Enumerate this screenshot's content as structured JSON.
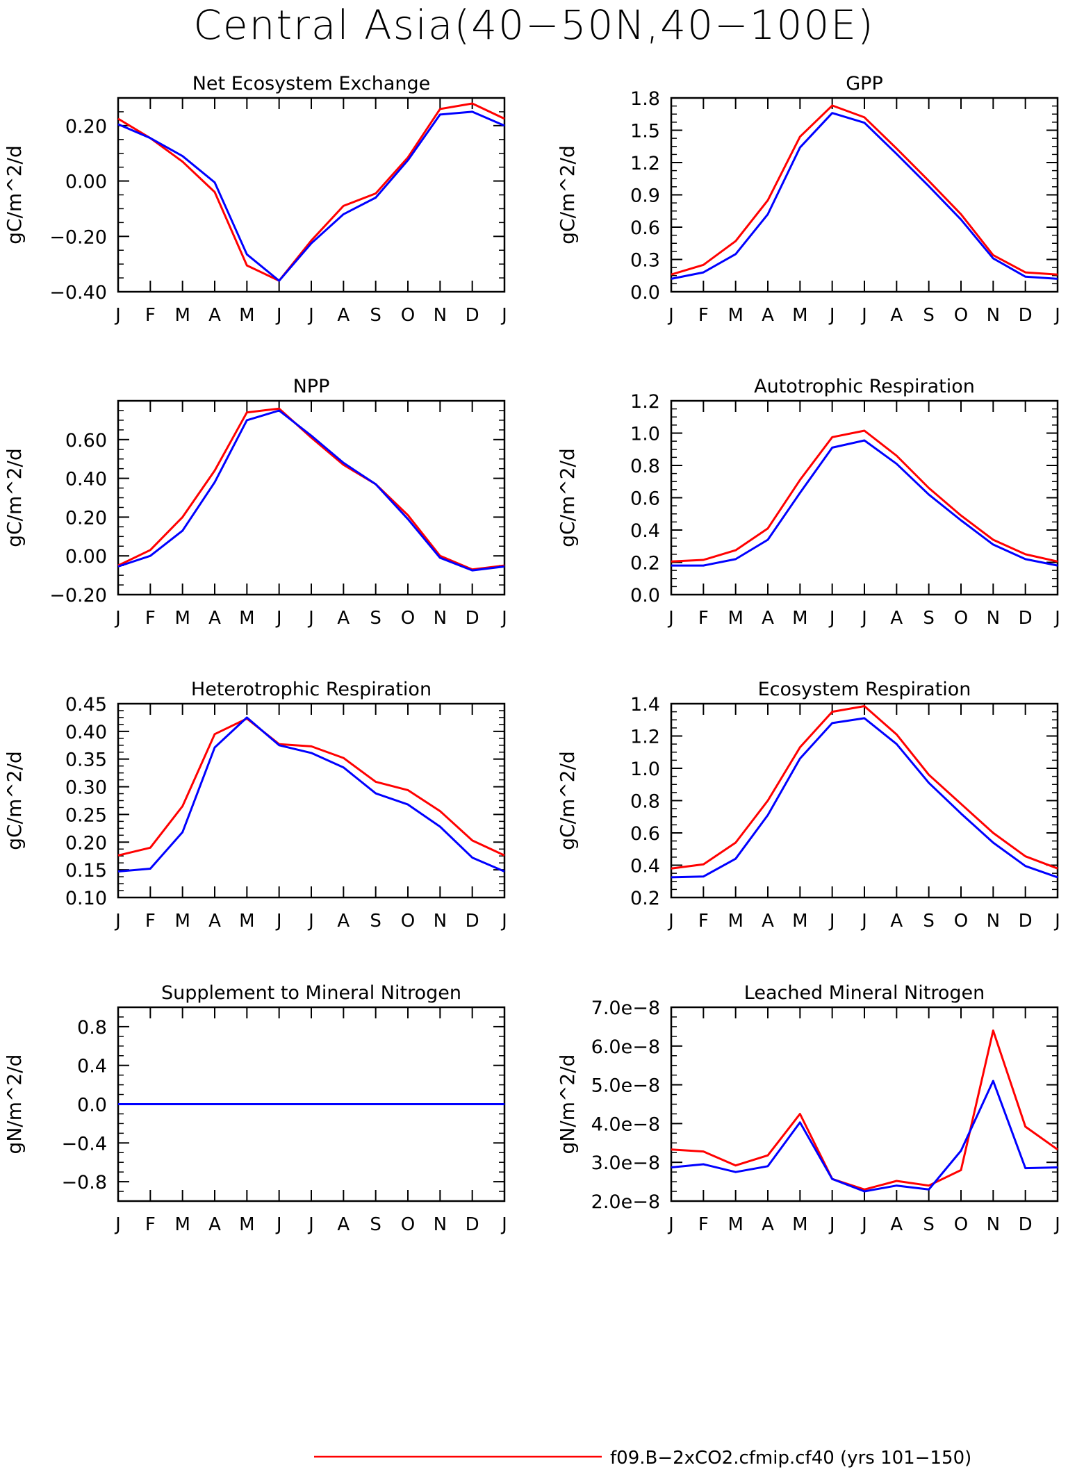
{
  "title": "Central Asia(40−50N,40−100E)",
  "months": [
    "J",
    "F",
    "M",
    "A",
    "M",
    "J",
    "J",
    "A",
    "S",
    "O",
    "N",
    "D",
    "J"
  ],
  "colors": {
    "red": "#ff0000",
    "blue": "#0000ff"
  },
  "legend": {
    "label": "f09.B−2xCO2.cfmip.cf40 (yrs 101−150)"
  },
  "chart_data": [
    {
      "type": "line",
      "title": "Net Ecosystem Exchange",
      "ylabel": "gC/m^2/d",
      "ylim": [
        -0.4,
        0.3
      ],
      "yticks": [
        -0.4,
        -0.2,
        0.0,
        0.2
      ],
      "yticklabels": [
        "−0.40",
        "−0.20",
        "0.00",
        "0.20"
      ],
      "series": [
        {
          "color": "red",
          "values": [
            0.225,
            0.155,
            0.07,
            -0.04,
            -0.305,
            -0.36,
            -0.215,
            -0.09,
            -0.045,
            0.085,
            0.26,
            0.28,
            0.225
          ]
        },
        {
          "color": "blue",
          "values": [
            0.205,
            0.155,
            0.09,
            -0.005,
            -0.265,
            -0.36,
            -0.225,
            -0.12,
            -0.06,
            0.075,
            0.24,
            0.25,
            0.2
          ]
        }
      ]
    },
    {
      "type": "line",
      "title": "GPP",
      "ylabel": "gC/m^2/d",
      "ylim": [
        0.0,
        1.8
      ],
      "yticks": [
        0.0,
        0.3,
        0.6,
        0.9,
        1.2,
        1.5,
        1.8
      ],
      "yticklabels": [
        "0.0",
        "0.3",
        "0.6",
        "0.9",
        "1.2",
        "1.5",
        "1.8"
      ],
      "series": [
        {
          "color": "red",
          "values": [
            0.16,
            0.25,
            0.47,
            0.85,
            1.44,
            1.73,
            1.62,
            1.33,
            1.03,
            0.72,
            0.34,
            0.18,
            0.16
          ]
        },
        {
          "color": "blue",
          "values": [
            0.12,
            0.18,
            0.35,
            0.72,
            1.34,
            1.66,
            1.57,
            1.28,
            0.98,
            0.67,
            0.31,
            0.14,
            0.12
          ]
        }
      ]
    },
    {
      "type": "line",
      "title": "NPP",
      "ylabel": "gC/m^2/d",
      "ylim": [
        -0.2,
        0.8
      ],
      "yticks": [
        -0.2,
        0.0,
        0.2,
        0.4,
        0.6
      ],
      "yticklabels": [
        "−0.20",
        "0.00",
        "0.20",
        "0.40",
        "0.60"
      ],
      "series": [
        {
          "color": "red",
          "values": [
            -0.05,
            0.03,
            0.2,
            0.44,
            0.74,
            0.76,
            0.61,
            0.47,
            0.37,
            0.21,
            0.0,
            -0.07,
            -0.05
          ]
        },
        {
          "color": "blue",
          "values": [
            -0.055,
            0.0,
            0.13,
            0.38,
            0.7,
            0.75,
            0.62,
            0.48,
            0.37,
            0.19,
            -0.01,
            -0.075,
            -0.055
          ]
        }
      ]
    },
    {
      "type": "line",
      "title": "Autotrophic Respiration",
      "ylabel": "gC/m^2/d",
      "ylim": [
        0.0,
        1.2
      ],
      "yticks": [
        0.0,
        0.2,
        0.4,
        0.6,
        0.8,
        1.0,
        1.2
      ],
      "yticklabels": [
        "0.0",
        "0.2",
        "0.4",
        "0.6",
        "0.8",
        "1.0",
        "1.2"
      ],
      "series": [
        {
          "color": "red",
          "values": [
            0.205,
            0.215,
            0.275,
            0.41,
            0.71,
            0.975,
            1.015,
            0.86,
            0.66,
            0.49,
            0.34,
            0.25,
            0.205
          ]
        },
        {
          "color": "blue",
          "values": [
            0.18,
            0.18,
            0.22,
            0.34,
            0.63,
            0.91,
            0.955,
            0.81,
            0.62,
            0.46,
            0.31,
            0.22,
            0.18
          ]
        }
      ]
    },
    {
      "type": "line",
      "title": "Heterotrophic Respiration",
      "ylabel": "gC/m^2/d",
      "ylim": [
        0.1,
        0.45
      ],
      "yticks": [
        0.1,
        0.15,
        0.2,
        0.25,
        0.3,
        0.35,
        0.4,
        0.45
      ],
      "yticklabels": [
        "0.10",
        "0.15",
        "0.20",
        "0.25",
        "0.30",
        "0.35",
        "0.40",
        "0.45"
      ],
      "series": [
        {
          "color": "red",
          "values": [
            0.176,
            0.19,
            0.265,
            0.395,
            0.423,
            0.377,
            0.373,
            0.352,
            0.309,
            0.294,
            0.256,
            0.203,
            0.176
          ]
        },
        {
          "color": "blue",
          "values": [
            0.147,
            0.152,
            0.218,
            0.371,
            0.425,
            0.375,
            0.361,
            0.335,
            0.288,
            0.268,
            0.228,
            0.172,
            0.147
          ]
        }
      ]
    },
    {
      "type": "line",
      "title": "Ecosystem Respiration",
      "ylabel": "gC/m^2/d",
      "ylim": [
        0.2,
        1.4
      ],
      "yticks": [
        0.2,
        0.4,
        0.6,
        0.8,
        1.0,
        1.2,
        1.4
      ],
      "yticklabels": [
        "0.2",
        "0.4",
        "0.6",
        "0.8",
        "1.0",
        "1.2",
        "1.4"
      ],
      "series": [
        {
          "color": "red",
          "values": [
            0.38,
            0.405,
            0.54,
            0.8,
            1.13,
            1.35,
            1.385,
            1.21,
            0.96,
            0.78,
            0.6,
            0.455,
            0.38
          ]
        },
        {
          "color": "blue",
          "values": [
            0.325,
            0.33,
            0.44,
            0.71,
            1.06,
            1.28,
            1.31,
            1.15,
            0.91,
            0.72,
            0.54,
            0.395,
            0.325
          ]
        }
      ]
    },
    {
      "type": "line",
      "title": "Supplement to Mineral Nitrogen",
      "ylabel": "gN/m^2/d",
      "ylim": [
        -1.0,
        1.0
      ],
      "yticks": [
        -0.8,
        -0.4,
        0.0,
        0.4,
        0.8
      ],
      "yticklabels": [
        "−0.8",
        "−0.4",
        "0.0",
        "0.4",
        "0.8"
      ],
      "series": [
        {
          "color": "red",
          "values": [
            0,
            0,
            0,
            0,
            0,
            0,
            0,
            0,
            0,
            0,
            0,
            0,
            0
          ]
        },
        {
          "color": "blue",
          "values": [
            0,
            0,
            0,
            0,
            0,
            0,
            0,
            0,
            0,
            0,
            0,
            0,
            0
          ]
        }
      ]
    },
    {
      "type": "line",
      "title": "Leached Mineral Nitrogen",
      "ylabel": "gN/m^2/d",
      "ylim": [
        2e-08,
        7e-08
      ],
      "yticks": [
        2e-08,
        3e-08,
        4e-08,
        5e-08,
        6e-08,
        7e-08
      ],
      "yticklabels": [
        "2.0e−8",
        "3.0e−8",
        "4.0e−8",
        "5.0e−8",
        "6.0e−8",
        "7.0e−8"
      ],
      "series": [
        {
          "color": "red",
          "values": [
            3.33e-08,
            3.28e-08,
            2.92e-08,
            3.18e-08,
            4.25e-08,
            2.57e-08,
            2.3e-08,
            2.52e-08,
            2.4e-08,
            2.8e-08,
            6.4e-08,
            3.92e-08,
            3.33e-08
          ]
        },
        {
          "color": "blue",
          "values": [
            2.87e-08,
            2.95e-08,
            2.75e-08,
            2.9e-08,
            4.03e-08,
            2.57e-08,
            2.25e-08,
            2.4e-08,
            2.3e-08,
            3.3e-08,
            5.1e-08,
            2.85e-08,
            2.87e-08
          ]
        }
      ]
    }
  ]
}
